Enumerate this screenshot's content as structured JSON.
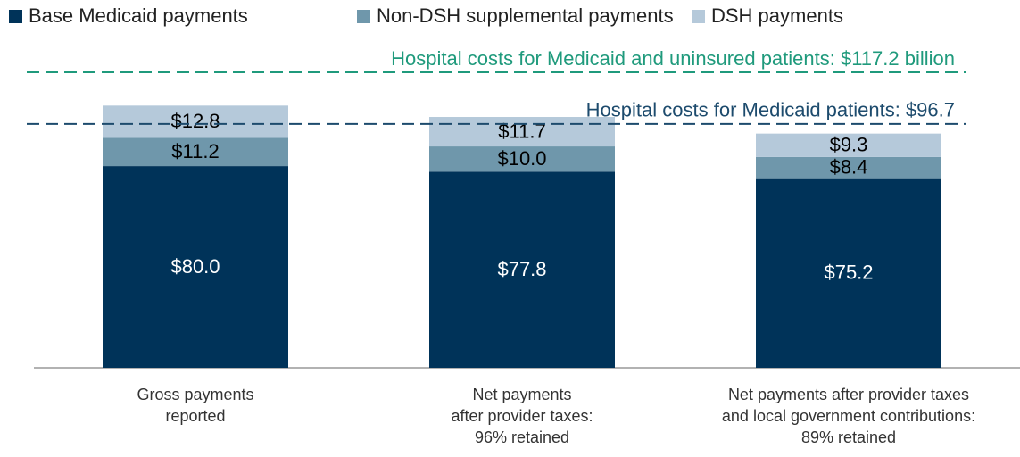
{
  "chart_data": {
    "type": "stacked_bar",
    "categories": [
      "Gross payments\nreported",
      "Net payments\nafter provider taxes:\n96% retained",
      "Net payments after provider taxes\nand local government contributions:\n89% retained"
    ],
    "series": [
      {
        "name": "Base Medicaid payments",
        "color": "#003359",
        "label_color": "#ffffff",
        "values": [
          80.0,
          77.8,
          75.2
        ],
        "value_labels": [
          "$80.0",
          "$77.8",
          "$75.2"
        ]
      },
      {
        "name": "Non-DSH supplemental payments",
        "color": "#6f97ab",
        "label_color": "#000000",
        "values": [
          11.2,
          10.0,
          8.4
        ],
        "value_labels": [
          "$11.2",
          "$10.0",
          "$8.4"
        ]
      },
      {
        "name": "DSH payments",
        "color": "#b5c9da",
        "label_color": "#000000",
        "values": [
          12.8,
          11.7,
          9.3
        ],
        "value_labels": [
          "$12.8",
          "$11.7",
          "$9.3"
        ]
      }
    ],
    "reference_lines": [
      {
        "value": 117.2,
        "label": "Hospital costs for Medicaid and uninsured patients: $117.2 billion",
        "color": "#1f9a7c"
      },
      {
        "value": 96.7,
        "label": "Hospital costs for Medicaid patients: $96.7",
        "color": "#1d4b6d"
      }
    ],
    "ylim": [
      0,
      125
    ],
    "legend": "top-left"
  }
}
